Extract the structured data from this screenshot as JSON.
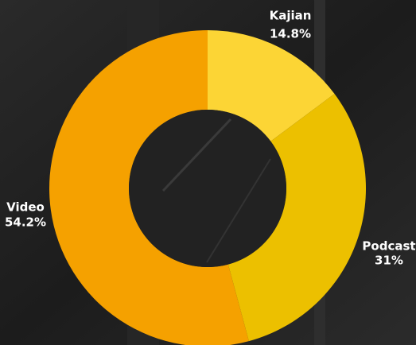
{
  "chart_data": {
    "type": "donut",
    "categories": [
      "Kajian",
      "Podcast",
      "Video"
    ],
    "values": [
      14.8,
      31,
      54.2
    ],
    "value_labels": [
      "14.8%",
      "31%",
      "54.2%"
    ],
    "colors": [
      "#fcd535",
      "#ecc000",
      "#f5a100"
    ]
  }
}
